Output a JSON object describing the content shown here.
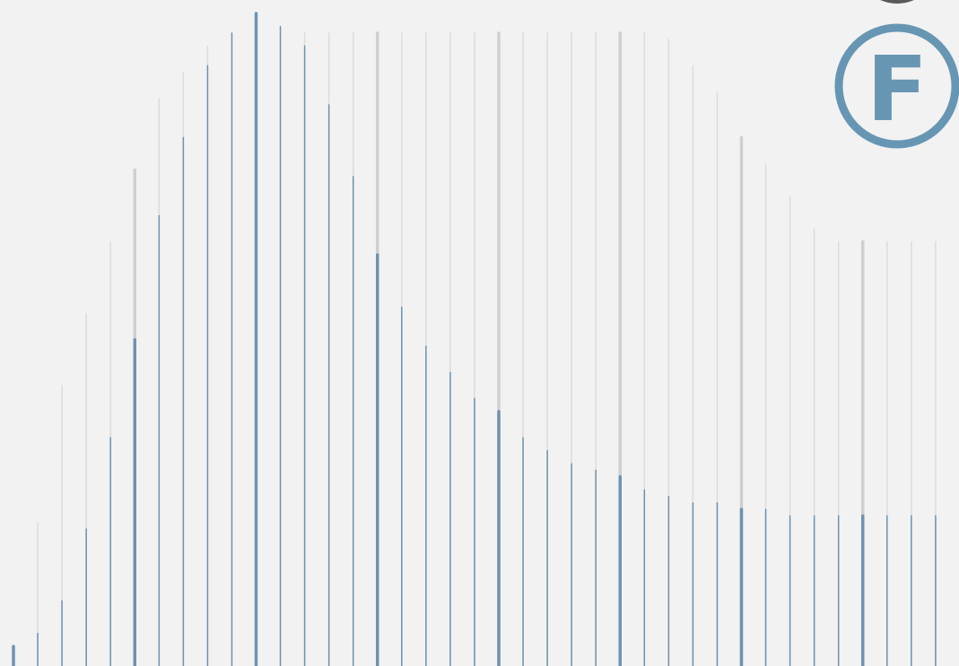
{
  "colors": {
    "background": "#f2f2f2",
    "bar": "#6f92b0",
    "envelope": "#dcdcdc",
    "envelope_major": "#cfcfcf",
    "badge": "#6796b3",
    "corner_badge": "#5a5a5a"
  },
  "badge": {
    "letter": "F",
    "icon": "circled-letter-icon"
  },
  "chart_data": {
    "type": "bar",
    "title": "",
    "xlabel": "",
    "ylabel": "",
    "grid": false,
    "legend": "none",
    "ylim": [
      0,
      100
    ],
    "major_every": 5,
    "series": [
      {
        "values": [
          3,
          5,
          10,
          21,
          35,
          50,
          69,
          81,
          92,
          97,
          100,
          98,
          95,
          86,
          75,
          63,
          55,
          49,
          45,
          41,
          39,
          35,
          33,
          31,
          30,
          29,
          27,
          26,
          25,
          25,
          24,
          24,
          23,
          23,
          23,
          23,
          23,
          23,
          23
        ]
      },
      {
        "values": [
          0,
          22,
          43,
          54,
          65,
          76,
          87,
          91,
          95,
          97,
          100,
          98,
          97,
          97,
          97,
          97,
          97,
          97,
          97,
          97,
          97,
          97,
          97,
          97,
          97,
          97,
          97,
          96,
          92,
          88,
          81,
          77,
          72,
          67,
          65,
          65,
          65,
          65,
          65
        ]
      }
    ]
  }
}
